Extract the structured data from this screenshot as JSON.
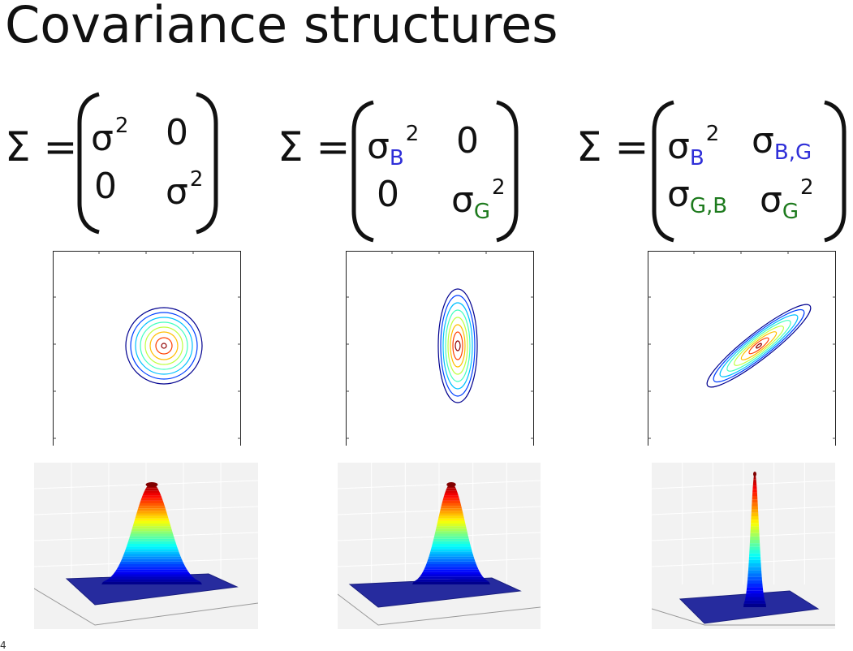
{
  "title": "Covariance structures",
  "page_number": "4",
  "matrices": [
    {
      "lhs": "Σ =",
      "cells": [
        {
          "base": "σ",
          "sub": "",
          "sup": "2"
        },
        {
          "base": "0",
          "sub": "",
          "sup": ""
        },
        {
          "base": "0",
          "sub": "",
          "sup": ""
        },
        {
          "base": "σ",
          "sub": "",
          "sup": "2"
        }
      ]
    },
    {
      "lhs": "Σ =",
      "cells": [
        {
          "base": "σ",
          "sub": "B",
          "sup": "2"
        },
        {
          "base": "0",
          "sub": "",
          "sup": ""
        },
        {
          "base": "0",
          "sub": "",
          "sup": ""
        },
        {
          "base": "σ",
          "sub": "G",
          "sup": "2"
        }
      ]
    },
    {
      "lhs": "Σ =",
      "cells": [
        {
          "base": "σ",
          "sub": "B",
          "sup": "2"
        },
        {
          "base": "σ",
          "sub": "B,G",
          "sup": ""
        },
        {
          "base": "σ",
          "sub": "G,B",
          "sup": ""
        },
        {
          "base": "σ",
          "sub": "G",
          "sup": "2"
        }
      ]
    }
  ],
  "colors": {
    "blue_subscript": "#2f2fd8",
    "green_subscript": "#1d7a1d",
    "contour_levels": [
      "#00008f",
      "#0040ff",
      "#00c0ff",
      "#40ffbf",
      "#bfff40",
      "#ffbf00",
      "#ff4000",
      "#8f0000"
    ]
  }
}
